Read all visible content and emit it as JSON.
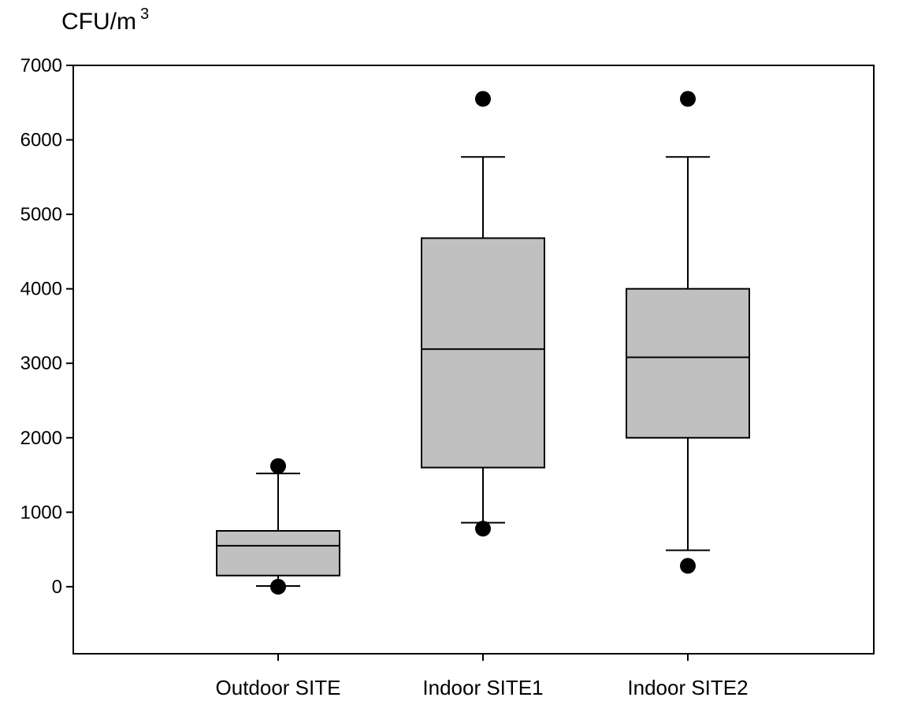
{
  "chart_data": {
    "type": "box",
    "title": "",
    "ylabel": "CFU/m",
    "ylabel_superscript": "3",
    "xlabel": "",
    "ylim": [
      -900,
      7000
    ],
    "yticks": [
      0,
      1000,
      2000,
      3000,
      4000,
      5000,
      6000,
      7000
    ],
    "ytick_labels": [
      "0",
      "1000",
      "2000",
      "3000",
      "4000",
      "5000",
      "6000",
      "7000"
    ],
    "grid": false,
    "legend": "none",
    "categories": [
      "Outdoor SITE",
      "Indoor SITE1",
      "Indoor SITE2"
    ],
    "boxes": [
      {
        "category": "Outdoor SITE",
        "whisker_low": 10,
        "q1": 150,
        "median": 550,
        "q3": 750,
        "whisker_high": 1520,
        "outliers": [
          0,
          1620
        ]
      },
      {
        "category": "Indoor SITE1",
        "whisker_low": 860,
        "q1": 1600,
        "median": 3190,
        "q3": 4680,
        "whisker_high": 5770,
        "outliers": [
          780,
          6550
        ]
      },
      {
        "category": "Indoor SITE2",
        "whisker_low": 490,
        "q1": 2000,
        "median": 3080,
        "q3": 4000,
        "whisker_high": 5770,
        "outliers": [
          280,
          6550
        ]
      }
    ],
    "colors": {
      "box_fill": "#c0c0c0",
      "stroke": "#000000",
      "outlier": "#000000"
    }
  }
}
